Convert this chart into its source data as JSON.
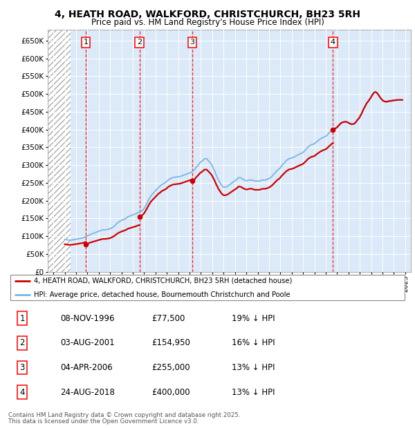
{
  "title_line1": "4, HEATH ROAD, WALKFORD, CHRISTCHURCH, BH23 5RH",
  "title_line2": "Price paid vs. HM Land Registry's House Price Index (HPI)",
  "plot_bg_color": "#dce9f8",
  "purchases": [
    {
      "label": "1",
      "date_x": 1996.86,
      "price": 77500,
      "date_str": "08-NOV-1996",
      "price_str": "£77,500",
      "pct_str": "19% ↓ HPI"
    },
    {
      "label": "2",
      "date_x": 2001.58,
      "price": 154950,
      "date_str": "03-AUG-2001",
      "price_str": "£154,950",
      "pct_str": "16% ↓ HPI"
    },
    {
      "label": "3",
      "date_x": 2006.25,
      "price": 255000,
      "date_str": "04-APR-2006",
      "price_str": "£255,000",
      "pct_str": "13% ↓ HPI"
    },
    {
      "label": "4",
      "date_x": 2018.64,
      "price": 400000,
      "date_str": "24-AUG-2018",
      "price_str": "£400,000",
      "pct_str": "13% ↓ HPI"
    }
  ],
  "hpi_line_color": "#7ab6e0",
  "price_line_color": "#cc0000",
  "ylim": [
    0,
    680000
  ],
  "yticks": [
    0,
    50000,
    100000,
    150000,
    200000,
    250000,
    300000,
    350000,
    400000,
    450000,
    500000,
    550000,
    600000,
    650000
  ],
  "xlim": [
    1993.5,
    2025.5
  ],
  "hatch_end_x": 1995.5,
  "legend_entry1": "4, HEATH ROAD, WALKFORD, CHRISTCHURCH, BH23 5RH (detached house)",
  "legend_entry2": "HPI: Average price, detached house, Bournemouth Christchurch and Poole",
  "footer_line1": "Contains HM Land Registry data © Crown copyright and database right 2025.",
  "footer_line2": "This data is licensed under the Open Government Licence v3.0.",
  "hpi_data": {
    "x": [
      1995.0,
      1995.08,
      1995.17,
      1995.25,
      1995.33,
      1995.42,
      1995.5,
      1995.58,
      1995.67,
      1995.75,
      1995.83,
      1995.92,
      1996.0,
      1996.08,
      1996.17,
      1996.25,
      1996.33,
      1996.42,
      1996.5,
      1996.58,
      1996.67,
      1996.75,
      1996.83,
      1996.92,
      1997.0,
      1997.08,
      1997.17,
      1997.25,
      1997.33,
      1997.42,
      1997.5,
      1997.58,
      1997.67,
      1997.75,
      1997.83,
      1997.92,
      1998.0,
      1998.08,
      1998.17,
      1998.25,
      1998.33,
      1998.42,
      1998.5,
      1998.58,
      1998.67,
      1998.75,
      1998.83,
      1998.92,
      1999.0,
      1999.08,
      1999.17,
      1999.25,
      1999.33,
      1999.42,
      1999.5,
      1999.58,
      1999.67,
      1999.75,
      1999.83,
      1999.92,
      2000.0,
      2000.08,
      2000.17,
      2000.25,
      2000.33,
      2000.42,
      2000.5,
      2000.58,
      2000.67,
      2000.75,
      2000.83,
      2000.92,
      2001.0,
      2001.08,
      2001.17,
      2001.25,
      2001.33,
      2001.42,
      2001.5,
      2001.58,
      2001.67,
      2001.75,
      2001.83,
      2001.92,
      2002.0,
      2002.08,
      2002.17,
      2002.25,
      2002.33,
      2002.42,
      2002.5,
      2002.58,
      2002.67,
      2002.75,
      2002.83,
      2002.92,
      2003.0,
      2003.08,
      2003.17,
      2003.25,
      2003.33,
      2003.42,
      2003.5,
      2003.58,
      2003.67,
      2003.75,
      2003.83,
      2003.92,
      2004.0,
      2004.08,
      2004.17,
      2004.25,
      2004.33,
      2004.42,
      2004.5,
      2004.58,
      2004.67,
      2004.75,
      2004.83,
      2004.92,
      2005.0,
      2005.08,
      2005.17,
      2005.25,
      2005.33,
      2005.42,
      2005.5,
      2005.58,
      2005.67,
      2005.75,
      2005.83,
      2005.92,
      2006.0,
      2006.08,
      2006.17,
      2006.25,
      2006.33,
      2006.42,
      2006.5,
      2006.58,
      2006.67,
      2006.75,
      2006.83,
      2006.92,
      2007.0,
      2007.08,
      2007.17,
      2007.25,
      2007.33,
      2007.42,
      2007.5,
      2007.58,
      2007.67,
      2007.75,
      2007.83,
      2007.92,
      2008.0,
      2008.08,
      2008.17,
      2008.25,
      2008.33,
      2008.42,
      2008.5,
      2008.58,
      2008.67,
      2008.75,
      2008.83,
      2008.92,
      2009.0,
      2009.08,
      2009.17,
      2009.25,
      2009.33,
      2009.42,
      2009.5,
      2009.58,
      2009.67,
      2009.75,
      2009.83,
      2009.92,
      2010.0,
      2010.08,
      2010.17,
      2010.25,
      2010.33,
      2010.42,
      2010.5,
      2010.58,
      2010.67,
      2010.75,
      2010.83,
      2010.92,
      2011.0,
      2011.08,
      2011.17,
      2011.25,
      2011.33,
      2011.42,
      2011.5,
      2011.58,
      2011.67,
      2011.75,
      2011.83,
      2011.92,
      2012.0,
      2012.08,
      2012.17,
      2012.25,
      2012.33,
      2012.42,
      2012.5,
      2012.58,
      2012.67,
      2012.75,
      2012.83,
      2012.92,
      2013.0,
      2013.08,
      2013.17,
      2013.25,
      2013.33,
      2013.42,
      2013.5,
      2013.58,
      2013.67,
      2013.75,
      2013.83,
      2013.92,
      2014.0,
      2014.08,
      2014.17,
      2014.25,
      2014.33,
      2014.42,
      2014.5,
      2014.58,
      2014.67,
      2014.75,
      2014.83,
      2014.92,
      2015.0,
      2015.08,
      2015.17,
      2015.25,
      2015.33,
      2015.42,
      2015.5,
      2015.58,
      2015.67,
      2015.75,
      2015.83,
      2015.92,
      2016.0,
      2016.08,
      2016.17,
      2016.25,
      2016.33,
      2016.42,
      2016.5,
      2016.58,
      2016.67,
      2016.75,
      2016.83,
      2016.92,
      2017.0,
      2017.08,
      2017.17,
      2017.25,
      2017.33,
      2017.42,
      2017.5,
      2017.58,
      2017.67,
      2017.75,
      2017.83,
      2017.92,
      2018.0,
      2018.08,
      2018.17,
      2018.25,
      2018.33,
      2018.42,
      2018.5,
      2018.58,
      2018.67,
      2018.75,
      2018.83,
      2018.92,
      2019.0,
      2019.08,
      2019.17,
      2019.25,
      2019.33,
      2019.42,
      2019.5,
      2019.58,
      2019.67,
      2019.75,
      2019.83,
      2019.92,
      2020.0,
      2020.08,
      2020.17,
      2020.25,
      2020.33,
      2020.42,
      2020.5,
      2020.58,
      2020.67,
      2020.75,
      2020.83,
      2020.92,
      2021.0,
      2021.08,
      2021.17,
      2021.25,
      2021.33,
      2021.42,
      2021.5,
      2021.58,
      2021.67,
      2021.75,
      2021.83,
      2021.92,
      2022.0,
      2022.08,
      2022.17,
      2022.25,
      2022.33,
      2022.42,
      2022.5,
      2022.58,
      2022.67,
      2022.75,
      2022.83,
      2022.92,
      2023.0,
      2023.08,
      2023.17,
      2023.25,
      2023.33,
      2023.42,
      2023.5,
      2023.58,
      2023.67,
      2023.75,
      2023.83,
      2023.92,
      2024.0,
      2024.08,
      2024.17,
      2024.25,
      2024.33,
      2024.42,
      2024.5,
      2024.58,
      2024.67,
      2024.75
    ],
    "y": [
      91000,
      90500,
      90000,
      89500,
      89200,
      89000,
      89000,
      89200,
      89500,
      90000,
      90500,
      91000,
      91500,
      92000,
      92500,
      93000,
      93500,
      94000,
      94500,
      95000,
      96000,
      97000,
      98500,
      100000,
      101000,
      102000,
      103500,
      105000,
      106000,
      107000,
      108000,
      109000,
      110000,
      111000,
      112000,
      113000,
      114000,
      115000,
      116000,
      117000,
      117500,
      118000,
      118000,
      118000,
      118500,
      119000,
      119500,
      120000,
      121000,
      122500,
      124000,
      126000,
      128000,
      130000,
      133000,
      135500,
      138000,
      140000,
      141500,
      143000,
      144500,
      146000,
      147000,
      148000,
      149500,
      151000,
      153000,
      155000,
      156000,
      157000,
      158000,
      159000,
      160000,
      161000,
      162000,
      163000,
      164500,
      166000,
      167000,
      167500,
      169000,
      170500,
      172000,
      175000,
      178000,
      183000,
      188000,
      193000,
      198000,
      204000,
      208000,
      213000,
      216000,
      219000,
      222000,
      225000,
      228000,
      231000,
      234000,
      237000,
      239000,
      241000,
      244000,
      246000,
      247000,
      249000,
      250000,
      252000,
      254000,
      257000,
      259000,
      261000,
      262000,
      263000,
      265000,
      265500,
      266000,
      266000,
      266500,
      267000,
      267000,
      267500,
      268000,
      269000,
      270000,
      271000,
      272000,
      273000,
      274000,
      275000,
      276000,
      277000,
      278000,
      279000,
      280000,
      282000,
      284000,
      287000,
      290000,
      294000,
      297000,
      300000,
      303000,
      307000,
      309000,
      311000,
      313000,
      316000,
      318000,
      318000,
      318000,
      315000,
      312000,
      309000,
      306000,
      302000,
      298000,
      292000,
      286000,
      280000,
      273000,
      267000,
      261000,
      256000,
      251000,
      247000,
      243000,
      240000,
      238000,
      238000,
      238000,
      239000,
      240000,
      242000,
      244000,
      246000,
      248000,
      250000,
      252000,
      254000,
      256000,
      258000,
      260000,
      263000,
      265000,
      265000,
      264000,
      263000,
      261000,
      259000,
      258000,
      257000,
      256000,
      256000,
      257000,
      258000,
      258000,
      258000,
      258000,
      257000,
      256000,
      255000,
      255000,
      255000,
      255000,
      255000,
      255000,
      256000,
      257000,
      258000,
      258000,
      258000,
      258000,
      259000,
      260000,
      261000,
      262000,
      264000,
      266000,
      268000,
      271000,
      274000,
      277000,
      280000,
      283000,
      286000,
      288000,
      290000,
      293000,
      297000,
      300000,
      303000,
      306000,
      309000,
      312000,
      314000,
      316000,
      318000,
      319000,
      319000,
      320000,
      321000,
      322000,
      323000,
      325000,
      326000,
      328000,
      329000,
      330000,
      332000,
      333000,
      334000,
      336000,
      338000,
      341000,
      344000,
      347000,
      350000,
      353000,
      354000,
      356000,
      358000,
      358000,
      359000,
      360000,
      362000,
      365000,
      367000,
      369000,
      371000,
      373000,
      375000,
      376000,
      378000,
      379000,
      380000,
      381000,
      383000,
      386000,
      389000,
      392000,
      394000,
      397000,
      399000,
      400000,
      402000,
      403000,
      404000,
      406000,
      409000,
      412000,
      415000,
      417000,
      419000,
      420000,
      421000,
      421000,
      422000,
      421000,
      420000,
      419000,
      417000,
      416000,
      415000,
      415000,
      415000,
      416000,
      418000,
      421000,
      425000,
      428000,
      431000,
      435000,
      440000,
      445000,
      451000,
      457000,
      462000,
      467000,
      472000,
      476000,
      479000,
      483000,
      487000,
      491000,
      496000,
      500000,
      503000,
      505000,
      505000,
      503000,
      500000,
      496000,
      492000,
      488000,
      485000,
      482000,
      480000,
      479000,
      478000,
      478000,
      478000,
      479000,
      480000,
      480000,
      480000,
      481000,
      481000,
      482000,
      482000,
      482000,
      483000,
      483000,
      483000,
      483000,
      483000,
      483000,
      483000
    ]
  }
}
